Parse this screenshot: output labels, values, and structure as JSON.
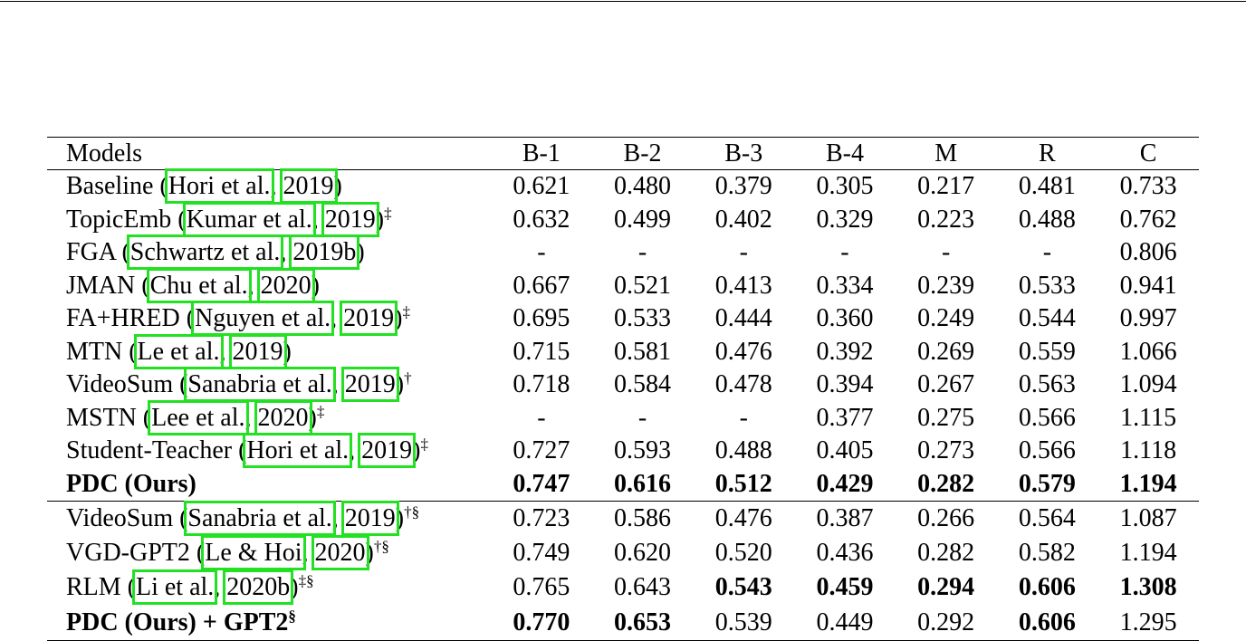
{
  "table": {
    "header": [
      "Models",
      "B-1",
      "B-2",
      "B-3",
      "B-4",
      "M",
      "R",
      "C"
    ],
    "groups": [
      [
        {
          "model": [
            "Baseline (",
            "Hori et al.",
            ", ",
            "2019",
            ")"
          ],
          "values": [
            "0.621",
            "0.480",
            "0.379",
            "0.305",
            "0.217",
            "0.481",
            "0.733"
          ]
        },
        {
          "model": [
            "TopicEmb (",
            "Kumar et al.",
            ", ",
            "2019",
            ")"
          ],
          "sup": "‡",
          "values": [
            "0.632",
            "0.499",
            "0.402",
            "0.329",
            "0.223",
            "0.488",
            "0.762"
          ]
        },
        {
          "model": [
            "FGA (",
            "Schwartz et al.",
            ", ",
            "2019b",
            ")"
          ],
          "values": [
            "-",
            "-",
            "-",
            "-",
            "-",
            "-",
            "0.806"
          ]
        },
        {
          "model": [
            "JMAN (",
            "Chu et al.",
            ", ",
            "2020",
            ")"
          ],
          "values": [
            "0.667",
            "0.521",
            "0.413",
            "0.334",
            "0.239",
            "0.533",
            "0.941"
          ]
        },
        {
          "model": [
            "FA+HRED (",
            "Nguyen et al.",
            ", ",
            "2019",
            ")"
          ],
          "sup": "‡",
          "values": [
            "0.695",
            "0.533",
            "0.444",
            "0.360",
            "0.249",
            "0.544",
            "0.997"
          ]
        },
        {
          "model": [
            "MTN (",
            "Le et al.",
            ", ",
            "2019",
            ")"
          ],
          "values": [
            "0.715",
            "0.581",
            "0.476",
            "0.392",
            "0.269",
            "0.559",
            "1.066"
          ]
        },
        {
          "model": [
            "VideoSum (",
            "Sanabria et al.",
            ", ",
            "2019",
            ")"
          ],
          "sup": "†",
          "values": [
            "0.718",
            "0.584",
            "0.478",
            "0.394",
            "0.267",
            "0.563",
            "1.094"
          ]
        },
        {
          "model": [
            "MSTN (",
            "Lee et al.",
            ", ",
            "2020",
            ")"
          ],
          "sup": "‡",
          "values": [
            "-",
            "-",
            "-",
            "0.377",
            "0.275",
            "0.566",
            "1.115"
          ]
        },
        {
          "model": [
            "Student-Teacher (",
            "Hori et al.",
            ", ",
            "2019",
            ")"
          ],
          "sup": "‡",
          "values": [
            "0.727",
            "0.593",
            "0.488",
            "0.405",
            "0.273",
            "0.566",
            "1.118"
          ]
        },
        {
          "model": [
            "PDC (Ours)"
          ],
          "bold_model": true,
          "values": [
            "0.747",
            "0.616",
            "0.512",
            "0.429",
            "0.282",
            "0.579",
            "1.194"
          ],
          "bold": [
            0,
            1,
            2,
            3,
            4,
            5,
            6
          ]
        }
      ],
      [
        {
          "model": [
            "VideoSum (",
            "Sanabria et al.",
            ", ",
            "2019",
            ")"
          ],
          "sup": "†§",
          "values": [
            "0.723",
            "0.586",
            "0.476",
            "0.387",
            "0.266",
            "0.564",
            "1.087"
          ]
        },
        {
          "model": [
            "VGD-GPT2 (",
            "Le & Hoi",
            ", ",
            "2020",
            ")"
          ],
          "sup": "†§",
          "values": [
            "0.749",
            "0.620",
            "0.520",
            "0.436",
            "0.282",
            "0.582",
            "1.194"
          ]
        },
        {
          "model": [
            "RLM (",
            "Li et al.",
            ", ",
            "2020b",
            ")"
          ],
          "sup": "‡§",
          "values": [
            "0.765",
            "0.643",
            "0.543",
            "0.459",
            "0.294",
            "0.606",
            "1.308"
          ],
          "bold": [
            2,
            3,
            4,
            5,
            6
          ]
        },
        {
          "model": [
            "PDC (Ours) + GPT2"
          ],
          "bold_model": true,
          "sup": "§",
          "values": [
            "0.770",
            "0.653",
            "0.539",
            "0.449",
            "0.292",
            "0.606",
            "1.295"
          ],
          "bold": [
            0,
            1,
            5
          ]
        }
      ]
    ]
  }
}
